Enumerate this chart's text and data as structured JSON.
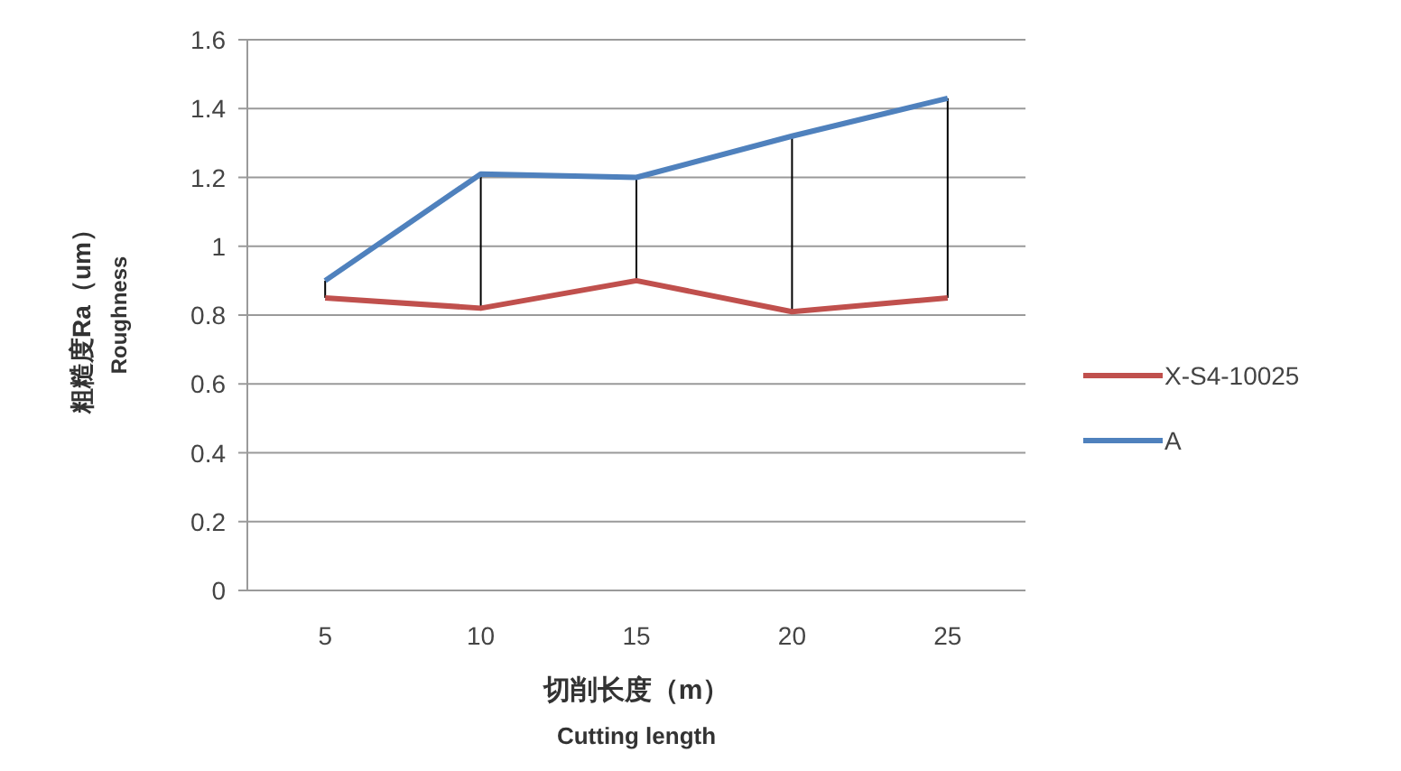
{
  "chart_data": {
    "type": "line",
    "xlabel": "切削长度（m）\nCutting length",
    "ylabel": "粗糙度Ra（um）\nRoughness",
    "categories": [
      "5",
      "10",
      "15",
      "20",
      "25"
    ],
    "series": [
      {
        "name": "X-S4-10025",
        "color": "#c0504d",
        "values": [
          0.85,
          0.82,
          0.9,
          0.81,
          0.85
        ],
        "errors": [
          [
            0.85,
            0.9
          ],
          [
            0.82,
            1.21
          ],
          [
            0.9,
            1.2
          ],
          [
            0.81,
            1.32
          ],
          [
            0.85,
            1.43
          ]
        ]
      },
      {
        "name": "A",
        "color": "#4f81bd",
        "values": [
          0.9,
          1.21,
          1.2,
          1.32,
          1.43
        ]
      }
    ],
    "ylim": [
      0,
      1.6
    ],
    "yticks": [
      0,
      0.2,
      0.4,
      0.6,
      0.8,
      1,
      1.2,
      1.4,
      1.6
    ],
    "grid": "y",
    "legend": "right",
    "marker": "none"
  }
}
